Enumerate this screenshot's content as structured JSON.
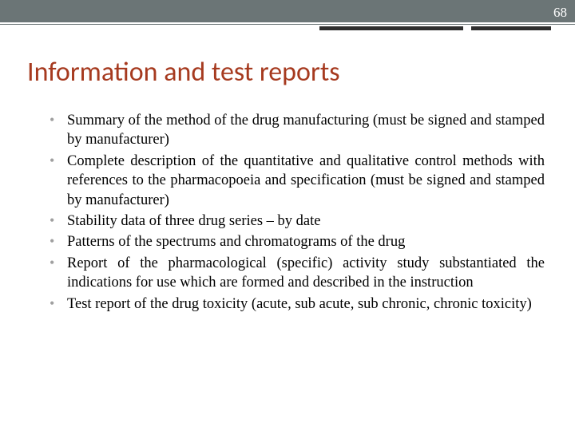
{
  "page_number": "68",
  "title": "Information and test reports",
  "colors": {
    "header_bar": "#6b7576",
    "title_color": "#a63a1f",
    "text_color": "#000000",
    "bullet_color": "#a0a0a0",
    "background": "#ffffff",
    "thick_line": "#2e2e2e"
  },
  "fonts": {
    "title_size_pt": 28,
    "body_size_pt": 18,
    "title_family": "Calibri",
    "body_family": "Georgia"
  },
  "bullets": [
    "Summary of the method of the drug manufacturing (must be signed and stamped by manufacturer)",
    "Complete description of the quantitative and qualitative control methods with references to the pharmacopoeia and specification (must be signed and stamped by manufacturer)",
    "Stability data of three drug series – by date",
    "Patterns of the spectrums and chromatograms of the drug",
    "Report of the pharmacological (specific) activity study substantiated the indications for use which are formed and described in the instruction",
    "Test report of the drug toxicity (acute, sub acute, sub chronic, chronic toxicity)"
  ]
}
